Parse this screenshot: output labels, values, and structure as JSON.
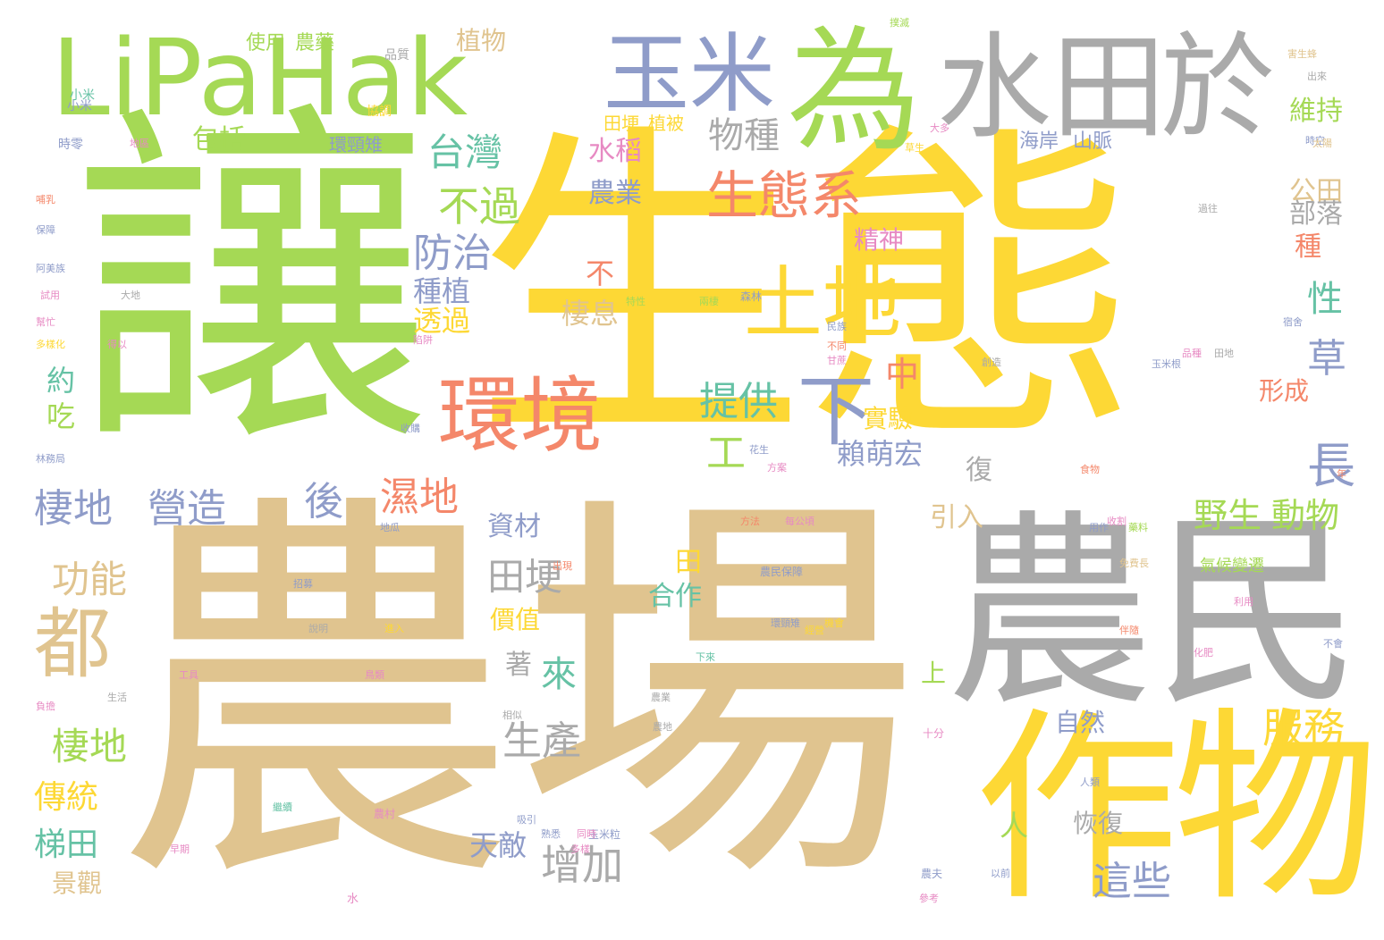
{
  "palette": {
    "gold": "#fdd835",
    "tan": "#e0c48f",
    "green": "#a5d955",
    "gray": "#aaaaaa",
    "coral": "#f4876a",
    "blue": "#8f9cc9",
    "teal": "#66c2a5",
    "pink": "#e78ac3"
  },
  "words": [
    {
      "text": "生態",
      "color": "gold"
    },
    {
      "text": "農場",
      "color": "tan"
    },
    {
      "text": "讓",
      "color": "green"
    },
    {
      "text": "農民",
      "color": "gray"
    },
    {
      "text": "LiPaHak",
      "color": "green"
    },
    {
      "text": "為",
      "color": "green"
    },
    {
      "text": "水田",
      "color": "gray"
    },
    {
      "text": "於",
      "color": "gray"
    },
    {
      "text": "作物",
      "color": "gold"
    },
    {
      "text": "玉米",
      "color": "blue"
    },
    {
      "text": "環境",
      "color": "coral"
    },
    {
      "text": "土地",
      "color": "gold"
    },
    {
      "text": "都",
      "color": "tan"
    },
    {
      "text": "生態系",
      "color": "coral"
    },
    {
      "text": "下",
      "color": "blue"
    },
    {
      "text": "物種",
      "color": "gray"
    },
    {
      "text": "台灣",
      "color": "teal"
    },
    {
      "text": "不過",
      "color": "green"
    },
    {
      "text": "防治",
      "color": "blue"
    },
    {
      "text": "提供",
      "color": "teal"
    },
    {
      "text": "工",
      "color": "green"
    },
    {
      "text": "賴萌宏",
      "color": "blue"
    },
    {
      "text": "棲地",
      "color": "blue"
    },
    {
      "text": "營造",
      "color": "blue"
    },
    {
      "text": "後",
      "color": "blue"
    },
    {
      "text": "濕地",
      "color": "coral"
    },
    {
      "text": "功能",
      "color": "tan"
    },
    {
      "text": "田埂",
      "color": "gray"
    },
    {
      "text": "棲地",
      "color": "green"
    },
    {
      "text": "生產",
      "color": "gray"
    },
    {
      "text": "來",
      "color": "teal"
    },
    {
      "text": "傳統",
      "color": "gold"
    },
    {
      "text": "梯田",
      "color": "teal"
    },
    {
      "text": "景觀",
      "color": "tan"
    },
    {
      "text": "增加",
      "color": "gray"
    },
    {
      "text": "天敵",
      "color": "blue"
    },
    {
      "text": "人",
      "color": "green"
    },
    {
      "text": "服務",
      "color": "gold"
    },
    {
      "text": "這些",
      "color": "blue"
    },
    {
      "text": "恢復",
      "color": "gray"
    },
    {
      "text": "野生",
      "color": "green"
    },
    {
      "text": "動物",
      "color": "green"
    },
    {
      "text": "長",
      "color": "blue"
    },
    {
      "text": "草",
      "color": "blue"
    },
    {
      "text": "性",
      "color": "teal"
    },
    {
      "text": "公田",
      "color": "tan"
    },
    {
      "text": "部落",
      "color": "gray"
    },
    {
      "text": "種",
      "color": "coral"
    },
    {
      "text": "維持",
      "color": "green"
    },
    {
      "text": "形成",
      "color": "coral"
    },
    {
      "text": "復",
      "color": "gray"
    },
    {
      "text": "引入",
      "color": "tan"
    },
    {
      "text": "自然",
      "color": "blue"
    },
    {
      "text": "資材",
      "color": "blue"
    },
    {
      "text": "田",
      "color": "gold"
    },
    {
      "text": "合作",
      "color": "teal"
    },
    {
      "text": "價值",
      "color": "gold"
    },
    {
      "text": "著",
      "color": "gray"
    },
    {
      "text": "上",
      "color": "green"
    },
    {
      "text": "中",
      "color": "coral"
    },
    {
      "text": "實驗",
      "color": "gold"
    },
    {
      "text": "精神",
      "color": "pink"
    },
    {
      "text": "棲息",
      "color": "tan"
    },
    {
      "text": "不",
      "color": "coral"
    },
    {
      "text": "種植",
      "color": "blue"
    },
    {
      "text": "透過",
      "color": "gold"
    },
    {
      "text": "約",
      "color": "teal"
    },
    {
      "text": "吃",
      "color": "green"
    },
    {
      "text": "包括",
      "color": "green"
    },
    {
      "text": "植物",
      "color": "tan"
    },
    {
      "text": "水稻",
      "color": "pink"
    },
    {
      "text": "農業",
      "color": "blue"
    },
    {
      "text": "海岸",
      "color": "blue"
    },
    {
      "text": "山脈",
      "color": "blue"
    },
    {
      "text": "使用",
      "color": "green"
    },
    {
      "text": "農藥",
      "color": "green"
    },
    {
      "text": "環頸雉",
      "color": "blue"
    },
    {
      "text": "田埂",
      "color": "gold"
    },
    {
      "text": "植被",
      "color": "gold"
    },
    {
      "text": "小米",
      "color": "blue"
    },
    {
      "text": "森林",
      "color": "blue"
    },
    {
      "text": "農民保障",
      "color": "blue"
    },
    {
      "text": "環頸雉",
      "color": "blue"
    },
    {
      "text": "機會",
      "color": "gold"
    },
    {
      "text": "氣候變遷",
      "color": "green"
    },
    {
      "text": "十分",
      "color": "pink"
    },
    {
      "text": "玉米粒",
      "color": "blue"
    },
    {
      "text": "農村",
      "color": "pink"
    },
    {
      "text": "玉米根",
      "color": "blue"
    },
    {
      "text": "農夫",
      "color": "blue"
    },
    {
      "text": "參考",
      "color": "pink"
    },
    {
      "text": "以前",
      "color": "blue"
    },
    {
      "text": "人類",
      "color": "blue"
    },
    {
      "text": "吸引",
      "color": "blue"
    },
    {
      "text": "同時",
      "color": "pink"
    },
    {
      "text": "熟悉",
      "color": "blue"
    },
    {
      "text": "花生",
      "color": "blue"
    },
    {
      "text": "下來",
      "color": "teal"
    },
    {
      "text": "收購",
      "color": "blue"
    },
    {
      "text": "方法",
      "color": "coral"
    },
    {
      "text": "每公頃",
      "color": "pink"
    },
    {
      "text": "出現",
      "color": "coral"
    },
    {
      "text": "生活",
      "color": "gray"
    },
    {
      "text": "林務局",
      "color": "blue"
    },
    {
      "text": "阿美族",
      "color": "blue"
    },
    {
      "text": "多樣化",
      "color": "gold"
    },
    {
      "text": "哺乳",
      "color": "coral"
    },
    {
      "text": "保障",
      "color": "blue"
    },
    {
      "text": "幫忙",
      "color": "pink"
    },
    {
      "text": "大地",
      "color": "gray"
    },
    {
      "text": "得以",
      "color": "pink"
    },
    {
      "text": "水",
      "color": "pink"
    },
    {
      "text": "繼續",
      "color": "teal"
    },
    {
      "text": "早期",
      "color": "pink"
    },
    {
      "text": "負擔",
      "color": "pink"
    },
    {
      "text": "利用",
      "color": "pink"
    },
    {
      "text": "不會",
      "color": "blue"
    },
    {
      "text": "化肥",
      "color": "pink"
    },
    {
      "text": "伴隨",
      "color": "coral"
    },
    {
      "text": "免費長",
      "color": "tan"
    },
    {
      "text": "時空",
      "color": "blue"
    },
    {
      "text": "太陽",
      "color": "tan"
    },
    {
      "text": "用作",
      "color": "blue"
    },
    {
      "text": "藥料",
      "color": "green"
    },
    {
      "text": "食物",
      "color": "coral"
    },
    {
      "text": "創造",
      "color": "gray"
    },
    {
      "text": "草生",
      "color": "gold"
    },
    {
      "text": "大多",
      "color": "pink"
    },
    {
      "text": "民族",
      "color": "blue"
    },
    {
      "text": "不同",
      "color": "coral"
    },
    {
      "text": "甘蔗",
      "color": "pink"
    },
    {
      "text": "兩棲",
      "color": "green"
    },
    {
      "text": "特性",
      "color": "green"
    },
    {
      "text": "過往",
      "color": "gray"
    },
    {
      "text": "收割",
      "color": "pink"
    },
    {
      "text": "出來",
      "color": "gray"
    },
    {
      "text": "害生蜂",
      "color": "tan"
    },
    {
      "text": "陷阱",
      "color": "pink"
    },
    {
      "text": "宿舍",
      "color": "blue"
    },
    {
      "text": "小米",
      "color": "teal"
    },
    {
      "text": "時零",
      "color": "blue"
    },
    {
      "text": "地區",
      "color": "pink"
    },
    {
      "text": "去",
      "color": "gold"
    },
    {
      "text": "協調",
      "color": "gold"
    },
    {
      "text": "試用",
      "color": "pink"
    },
    {
      "text": "年",
      "color": "coral"
    },
    {
      "text": "品種",
      "color": "pink"
    },
    {
      "text": "田地",
      "color": "gray"
    },
    {
      "text": "多樣",
      "color": "pink"
    },
    {
      "text": "相似",
      "color": "gray"
    },
    {
      "text": "農地",
      "color": "gray"
    },
    {
      "text": "說明",
      "color": "gray"
    },
    {
      "text": "地瓜",
      "color": "blue"
    },
    {
      "text": "招募",
      "color": "blue"
    },
    {
      "text": "鳥類",
      "color": "pink"
    },
    {
      "text": "進入",
      "color": "gold"
    },
    {
      "text": "工具",
      "color": "pink"
    },
    {
      "text": "撲滅",
      "color": "green"
    },
    {
      "text": "品質",
      "color": "gray"
    },
    {
      "text": "方案",
      "color": "pink"
    },
    {
      "text": "農業",
      "color": "gray"
    },
    {
      "text": "經營",
      "color": "gold"
    }
  ]
}
